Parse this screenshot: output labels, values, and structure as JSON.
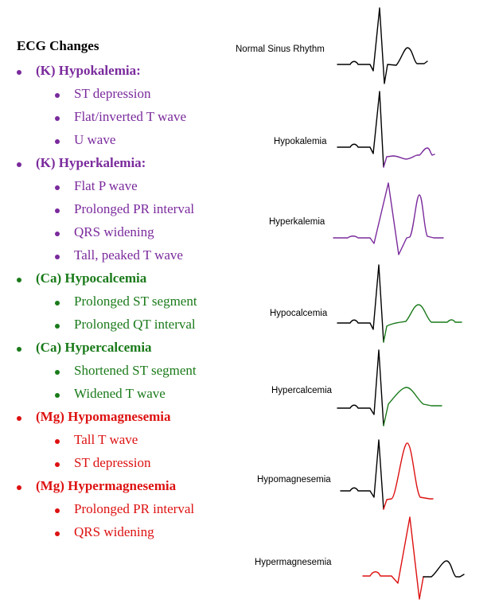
{
  "title": "ECG Changes",
  "colors": {
    "black": "#000000",
    "purple": "#7a2a9c",
    "green": "#1a7a1a",
    "red": "#dd1111"
  },
  "sections": [
    {
      "heading": "(K) Hypokalemia:",
      "color": "purple",
      "items": [
        "ST depression",
        "Flat/inverted T wave",
        "U wave"
      ]
    },
    {
      "heading": "(K) Hyperkalemia:",
      "color": "purple",
      "items": [
        "Flat P wave",
        "Prolonged PR interval",
        "QRS widening",
        "Tall, peaked T wave"
      ]
    },
    {
      "heading": " (Ca) Hypocalcemia",
      "color": "green",
      "items": [
        "Prolonged ST segment",
        "Prolonged QT interval"
      ]
    },
    {
      "heading": "(Ca) Hypercalcemia",
      "color": "green",
      "items": [
        "Shortened ST segment",
        "Widened T wave"
      ]
    },
    {
      "heading": "(Mg) Hypomagnesemia",
      "color": "red",
      "items": [
        "Tall T wave",
        "ST depression"
      ]
    },
    {
      "heading": "(Mg) Hypermagnesemia",
      "color": "red",
      "items": [
        "Prolonged PR interval",
        "QRS widening"
      ]
    }
  ],
  "ecg_labels": {
    "normal": "Normal Sinus Rhythm",
    "hypokalemia": "Hypokalemia",
    "hyperkalemia": "Hyperkalemia",
    "hypocalcemia": "Hypocalcemia",
    "hypercalcemia": "Hypercalcemia",
    "hypomagnesemia": "Hypomagnesemia",
    "hypermagnesemia": "Hypermagnesemia"
  }
}
